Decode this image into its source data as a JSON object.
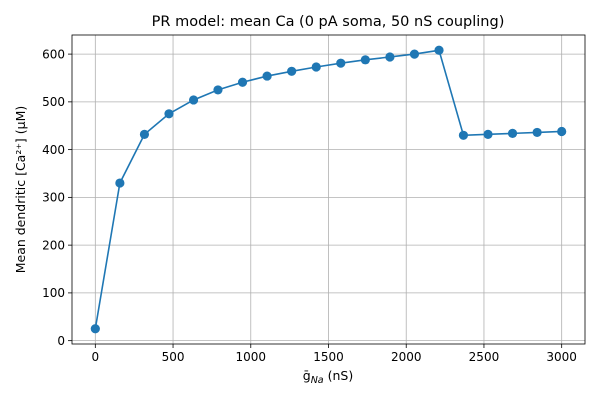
{
  "chart_data": {
    "type": "line",
    "title": "PR model: mean Ca (0 pA soma, 50 nS coupling)",
    "xlabel_main": "ḡ",
    "xlabel_sub": "Na",
    "xlabel_unit": " (nS)",
    "ylabel": "Mean dendritic [Ca²⁺] (μM)",
    "xlim": [
      -150,
      3150
    ],
    "ylim": [
      -7,
      640
    ],
    "xticks": [
      0,
      500,
      1000,
      1500,
      2000,
      2500,
      3000
    ],
    "yticks": [
      0,
      100,
      200,
      300,
      400,
      500,
      600
    ],
    "grid": true,
    "series": [
      {
        "color": "#1f77b4",
        "marker": "circle",
        "x": [
          0,
          158,
          316,
          474,
          632,
          789,
          947,
          1105,
          1263,
          1421,
          1579,
          1737,
          1895,
          2053,
          2211,
          2368,
          2526,
          2684,
          2842,
          3000
        ],
        "y": [
          25,
          330,
          432,
          475,
          504,
          525,
          541,
          554,
          564,
          573,
          581,
          588,
          594,
          600,
          608,
          430,
          432,
          434,
          436,
          438
        ]
      }
    ]
  }
}
